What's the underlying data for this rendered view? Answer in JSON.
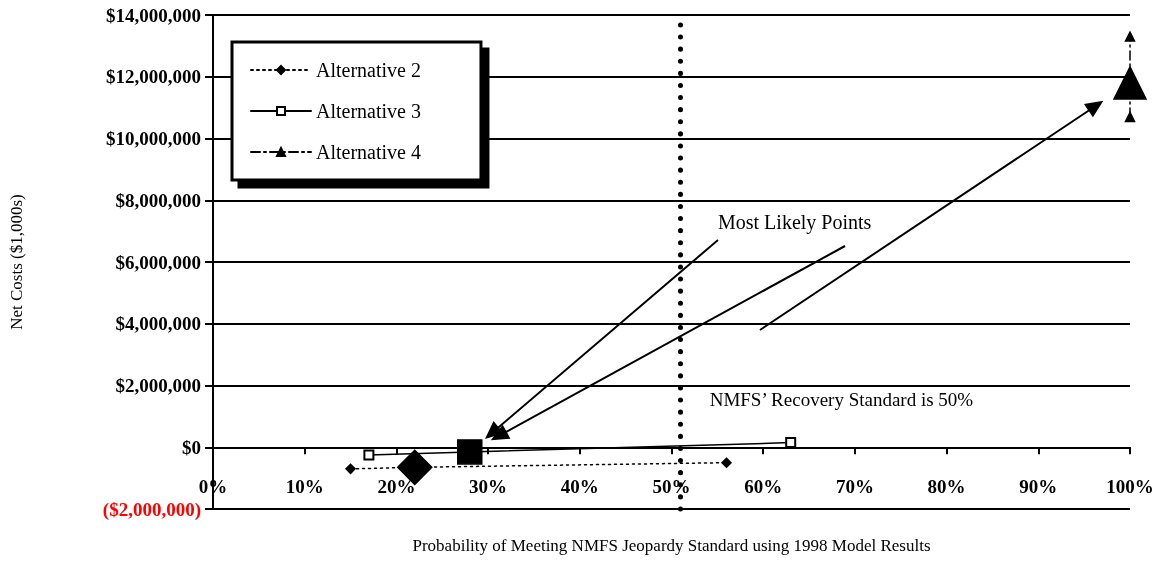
{
  "chart_data": {
    "type": "line",
    "xlabel": "Probability of Meeting NMFS Jeopardy Standard using 1998 Model Results",
    "ylabel": "Net Costs ($1,000s)",
    "xlim": [
      0,
      100
    ],
    "xticks": [
      {
        "value": 0,
        "label": "0%"
      },
      {
        "value": 10,
        "label": "10%"
      },
      {
        "value": 20,
        "label": "20%"
      },
      {
        "value": 30,
        "label": "30%"
      },
      {
        "value": 40,
        "label": "40%"
      },
      {
        "value": 50,
        "label": "50%"
      },
      {
        "value": 60,
        "label": "60%"
      },
      {
        "value": 70,
        "label": "70%"
      },
      {
        "value": 80,
        "label": "80%"
      },
      {
        "value": 90,
        "label": "90%"
      },
      {
        "value": 100,
        "label": "100%"
      }
    ],
    "ylim": [
      -2000000,
      14000000
    ],
    "yticks": [
      {
        "value": -2000000,
        "label": "($2,000,000)"
      },
      {
        "value": 0,
        "label": "$0"
      },
      {
        "value": 2000000,
        "label": "$2,000,000"
      },
      {
        "value": 4000000,
        "label": "$4,000,000"
      },
      {
        "value": 6000000,
        "label": "$6,000,000"
      },
      {
        "value": 8000000,
        "label": "$8,000,000"
      },
      {
        "value": 10000000,
        "label": "$10,000,000"
      },
      {
        "value": 12000000,
        "label": "$12,000,000"
      },
      {
        "value": 14000000,
        "label": "$14,000,000"
      }
    ],
    "grid": "y",
    "legend": "top left",
    "series": [
      {
        "name": "Alternative 2",
        "color": "#000000",
        "x": [
          15,
          22,
          56
        ],
        "values": [
          -700000,
          -650000,
          -500000
        ],
        "marker": "diamond",
        "line_style": "dotted"
      },
      {
        "name": "Alternative 3",
        "color": "#000000",
        "x": [
          17,
          28,
          63
        ],
        "values": [
          -250000,
          -150000,
          150000
        ],
        "marker": "square",
        "line_style": "solid"
      },
      {
        "name": "Alternative 4",
        "color": "#000000",
        "x": [
          100,
          100,
          100
        ],
        "values": [
          10700000,
          11800000,
          13300000
        ],
        "marker": "triangle",
        "line_style": "dashed"
      },
      {
        "type": "scatter",
        "color": "#000000",
        "x": [
          22
        ],
        "values": [
          -650000
        ],
        "marker": "diamond"
      },
      {
        "type": "scatter",
        "color": "#000000",
        "x": [
          28
        ],
        "values": [
          -150000
        ],
        "marker": "square"
      },
      {
        "type": "scatter",
        "color": "#000000",
        "x": [
          100
        ],
        "values": [
          11800000
        ],
        "marker": "triangle"
      }
    ],
    "ref_lines": [
      {
        "axis": "x",
        "value": 51,
        "label": "NMFS’ Recovery Standard is 50%",
        "line_style": "dotted",
        "color": "#000000"
      }
    ],
    "annotations": [
      "Most Likely Points"
    ]
  }
}
